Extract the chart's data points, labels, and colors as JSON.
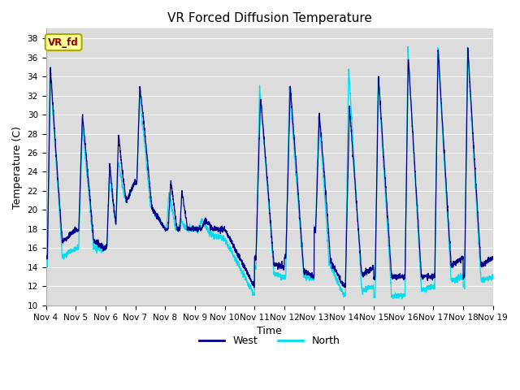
{
  "title": "VR Forced Diffusion Temperature",
  "xlabel": "Time",
  "ylabel": "Temperature (C)",
  "ylim": [
    10,
    39
  ],
  "yticks": [
    10,
    12,
    14,
    16,
    18,
    20,
    22,
    24,
    26,
    28,
    30,
    32,
    34,
    36,
    38
  ],
  "xtick_labels": [
    "Nov 4",
    "Nov 5",
    "Nov 6",
    "Nov 7",
    "Nov 8",
    "Nov 9",
    "Nov 10",
    "Nov 11",
    "Nov 12",
    "Nov 13",
    "Nov 14",
    "Nov 15",
    "Nov 16",
    "Nov 17",
    "Nov 18",
    "Nov 19"
  ],
  "west_color": "#00008B",
  "north_color": "#00DDEE",
  "plot_bg": "#DCDCDC",
  "label_box_color": "#FFFF99",
  "label_text_color": "#8B0000",
  "label_box_edge": "#AAAA00",
  "legend_west": "West",
  "legend_north": "North",
  "annotation": "VR_fd",
  "title_fontsize": 11,
  "axis_fontsize": 9,
  "tick_fontsize": 7.5
}
